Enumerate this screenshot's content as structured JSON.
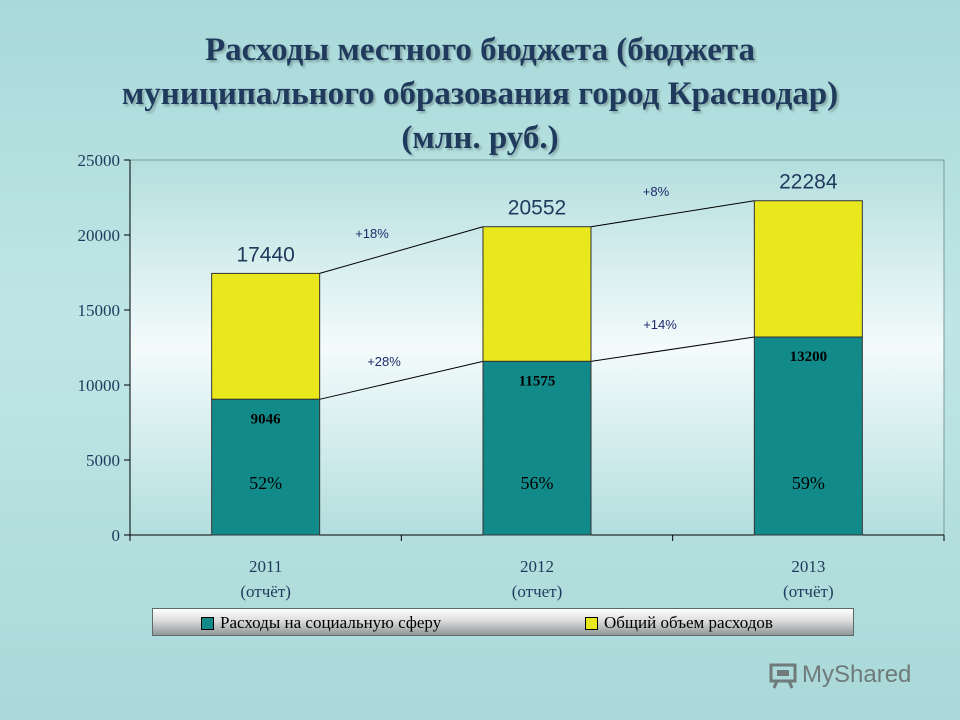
{
  "title_lines": [
    "Расходы местного бюджета (бюджета",
    "муниципального образования город Краснодар)",
    "(млн. руб.)"
  ],
  "chart_data": {
    "type": "bar",
    "stacked": true,
    "categories": [
      "2011",
      "2012",
      "2013"
    ],
    "category_sublabels": [
      "(отчёт)",
      "(отчет)",
      "(отчёт)"
    ],
    "ylim": [
      0,
      25000
    ],
    "yticks": [
      "0",
      "5000",
      "10000",
      "15000",
      "20000",
      "25000"
    ],
    "series": [
      {
        "name": "Расходы на социальную сферу",
        "color": "#138a8a",
        "values": [
          9046,
          11575,
          13200
        ],
        "labels": [
          "9046",
          "11575",
          "13200"
        ],
        "percent_labels": [
          "52%",
          "56%",
          "59%"
        ]
      },
      {
        "name": "Общий объем расходов",
        "color": "#e8e81c",
        "totals": [
          17440,
          20552,
          22284
        ],
        "labels": [
          "17440",
          "20552",
          "22284"
        ]
      }
    ],
    "growth_annotations": {
      "total": [
        "+18%",
        "+8%"
      ],
      "social": [
        "+28%",
        "+14%"
      ]
    },
    "legend_position": "bottom"
  },
  "watermark": "MyShared"
}
